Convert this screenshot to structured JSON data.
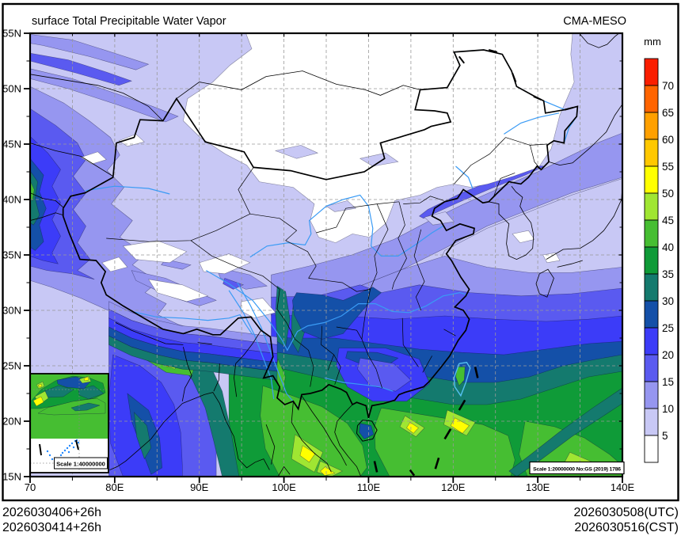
{
  "header": {
    "title": "surface Total Precipitable Water Vapor",
    "model": "CMA-MESO"
  },
  "colorbar": {
    "unit": "mm",
    "levels": [
      5,
      10,
      15,
      20,
      25,
      30,
      35,
      40,
      45,
      50,
      55,
      60,
      65,
      70
    ],
    "colors_bottom_to_top": [
      "#ffffff",
      "#c8c8f5",
      "#9696f0",
      "#5a5af0",
      "#3c3cf8",
      "#1450a8",
      "#147a6e",
      "#0f9b38",
      "#46be32",
      "#a0e632",
      "#ffff00",
      "#ffc800",
      "#ffa000",
      "#ff6400",
      "#fa1e00"
    ]
  },
  "axes": {
    "lat_values": [
      55,
      50,
      45,
      40,
      35,
      30,
      25,
      20,
      15
    ],
    "lat_labels": [
      "55N",
      "50N",
      "45N",
      "40N",
      "35N",
      "30N",
      "25N",
      "20N",
      "15N"
    ],
    "lon_values": [
      70,
      80,
      90,
      100,
      110,
      120,
      130,
      140
    ],
    "lon_labels": [
      "70",
      "80E",
      "90E",
      "100E",
      "110E",
      "120E",
      "130E",
      "140E"
    ],
    "lon_range": [
      70,
      140
    ],
    "lat_range": [
      15,
      55
    ],
    "grid_interval_deg": 5
  },
  "annotations": {
    "scale_main": "Scale 1:20000000 No:GS (2019) 1786",
    "scale_inset": "Scale 1:40000000"
  },
  "footer": {
    "left_line1": "2026030406+26h",
    "left_line2": "2026030414+26h",
    "right_line1": "2026030508(UTC)",
    "right_line2": "2026030516(CST)"
  },
  "map_style": {
    "river_color": "#3a9bf5",
    "taiwan_outline_color": "#55c0f0",
    "grid_color": "#999999",
    "border_color": "#000000"
  }
}
